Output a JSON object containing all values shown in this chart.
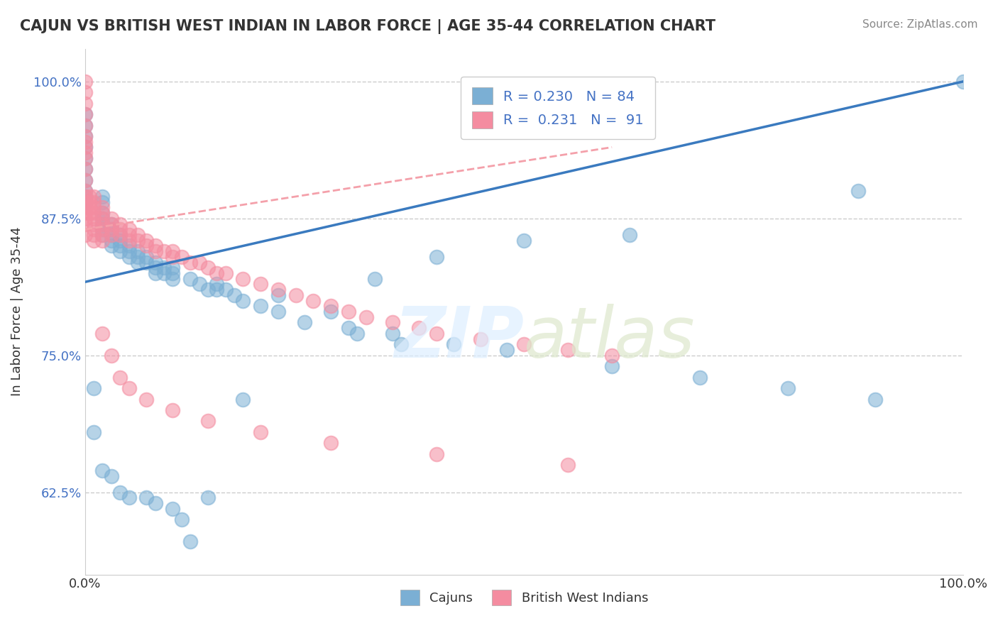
{
  "title": "CAJUN VS BRITISH WEST INDIAN IN LABOR FORCE | AGE 35-44 CORRELATION CHART",
  "source": "Source: ZipAtlas.com",
  "xlabel": "",
  "ylabel": "In Labor Force | Age 35-44",
  "xlim": [
    0.0,
    1.0
  ],
  "ylim": [
    0.55,
    1.03
  ],
  "xticks": [
    0.0,
    1.0
  ],
  "xticklabels": [
    "0.0%",
    "100.0%"
  ],
  "yticks": [
    0.625,
    0.75,
    0.875,
    1.0
  ],
  "yticklabels": [
    "62.5%",
    "75.0%",
    "87.5%",
    "100.0%"
  ],
  "legend_entries": [
    {
      "label": "R = 0.230   N = 84",
      "color": "#aec6e8"
    },
    {
      "label": "R =  0.231   N =  91",
      "color": "#f4b8c1"
    }
  ],
  "cajun_color": "#7bafd4",
  "british_color": "#f48ca0",
  "regression_cajun_color": "#3a7abf",
  "regression_british_color": "#f4a0aa",
  "watermark": "ZIPatlas",
  "cajun_x": [
    0.0,
    0.0,
    0.0,
    0.0,
    0.0,
    0.0,
    0.0,
    0.0,
    0.0,
    0.0,
    0.02,
    0.02,
    0.02,
    0.02,
    0.02,
    0.02,
    0.02,
    0.03,
    0.03,
    0.03,
    0.03,
    0.03,
    0.04,
    0.04,
    0.04,
    0.04,
    0.05,
    0.05,
    0.05,
    0.06,
    0.06,
    0.06,
    0.07,
    0.07,
    0.08,
    0.08,
    0.08,
    0.09,
    0.09,
    0.1,
    0.1,
    0.1,
    0.12,
    0.13,
    0.14,
    0.15,
    0.15,
    0.16,
    0.17,
    0.18,
    0.2,
    0.22,
    0.25,
    0.3,
    0.31,
    0.35,
    0.36,
    0.42,
    0.48,
    0.6,
    0.7,
    0.8,
    0.9,
    1.0,
    0.01,
    0.01,
    0.02,
    0.03,
    0.04,
    0.05,
    0.07,
    0.08,
    0.1,
    0.11,
    0.12,
    0.14,
    0.18,
    0.22,
    0.28,
    0.33,
    0.4,
    0.5,
    0.62,
    0.88
  ],
  "cajun_y": [
    0.97,
    0.96,
    0.95,
    0.94,
    0.93,
    0.92,
    0.91,
    0.9,
    0.895,
    0.89,
    0.895,
    0.89,
    0.88,
    0.875,
    0.87,
    0.865,
    0.86,
    0.87,
    0.865,
    0.86,
    0.855,
    0.85,
    0.86,
    0.855,
    0.85,
    0.845,
    0.85,
    0.845,
    0.84,
    0.845,
    0.84,
    0.835,
    0.84,
    0.835,
    0.835,
    0.83,
    0.825,
    0.83,
    0.825,
    0.83,
    0.825,
    0.82,
    0.82,
    0.815,
    0.81,
    0.815,
    0.81,
    0.81,
    0.805,
    0.8,
    0.795,
    0.79,
    0.78,
    0.775,
    0.77,
    0.77,
    0.76,
    0.76,
    0.755,
    0.74,
    0.73,
    0.72,
    0.71,
    1.0,
    0.72,
    0.68,
    0.645,
    0.64,
    0.625,
    0.62,
    0.62,
    0.615,
    0.61,
    0.6,
    0.58,
    0.62,
    0.71,
    0.805,
    0.79,
    0.82,
    0.84,
    0.855,
    0.86,
    0.9
  ],
  "british_x": [
    0.0,
    0.0,
    0.0,
    0.0,
    0.0,
    0.0,
    0.0,
    0.0,
    0.0,
    0.0,
    0.0,
    0.0,
    0.0,
    0.0,
    0.0,
    0.0,
    0.0,
    0.0,
    0.0,
    0.0,
    0.005,
    0.005,
    0.005,
    0.005,
    0.01,
    0.01,
    0.01,
    0.01,
    0.01,
    0.01,
    0.01,
    0.01,
    0.01,
    0.02,
    0.02,
    0.02,
    0.02,
    0.02,
    0.02,
    0.02,
    0.03,
    0.03,
    0.03,
    0.03,
    0.04,
    0.04,
    0.04,
    0.05,
    0.05,
    0.05,
    0.06,
    0.06,
    0.07,
    0.07,
    0.08,
    0.08,
    0.09,
    0.1,
    0.1,
    0.11,
    0.12,
    0.13,
    0.14,
    0.15,
    0.16,
    0.18,
    0.2,
    0.22,
    0.24,
    0.26,
    0.28,
    0.3,
    0.32,
    0.35,
    0.38,
    0.4,
    0.45,
    0.5,
    0.55,
    0.6,
    0.02,
    0.03,
    0.04,
    0.05,
    0.07,
    0.1,
    0.14,
    0.2,
    0.28,
    0.4,
    0.55
  ],
  "british_y": [
    1.0,
    0.99,
    0.98,
    0.97,
    0.96,
    0.95,
    0.945,
    0.94,
    0.935,
    0.93,
    0.92,
    0.91,
    0.9,
    0.895,
    0.89,
    0.885,
    0.88,
    0.875,
    0.87,
    0.86,
    0.895,
    0.89,
    0.885,
    0.88,
    0.895,
    0.89,
    0.885,
    0.88,
    0.875,
    0.87,
    0.865,
    0.86,
    0.855,
    0.885,
    0.88,
    0.875,
    0.87,
    0.865,
    0.86,
    0.855,
    0.875,
    0.87,
    0.865,
    0.86,
    0.87,
    0.865,
    0.86,
    0.865,
    0.86,
    0.855,
    0.86,
    0.855,
    0.855,
    0.85,
    0.85,
    0.845,
    0.845,
    0.845,
    0.84,
    0.84,
    0.835,
    0.835,
    0.83,
    0.825,
    0.825,
    0.82,
    0.815,
    0.81,
    0.805,
    0.8,
    0.795,
    0.79,
    0.785,
    0.78,
    0.775,
    0.77,
    0.765,
    0.76,
    0.755,
    0.75,
    0.77,
    0.75,
    0.73,
    0.72,
    0.71,
    0.7,
    0.69,
    0.68,
    0.67,
    0.66,
    0.65
  ]
}
